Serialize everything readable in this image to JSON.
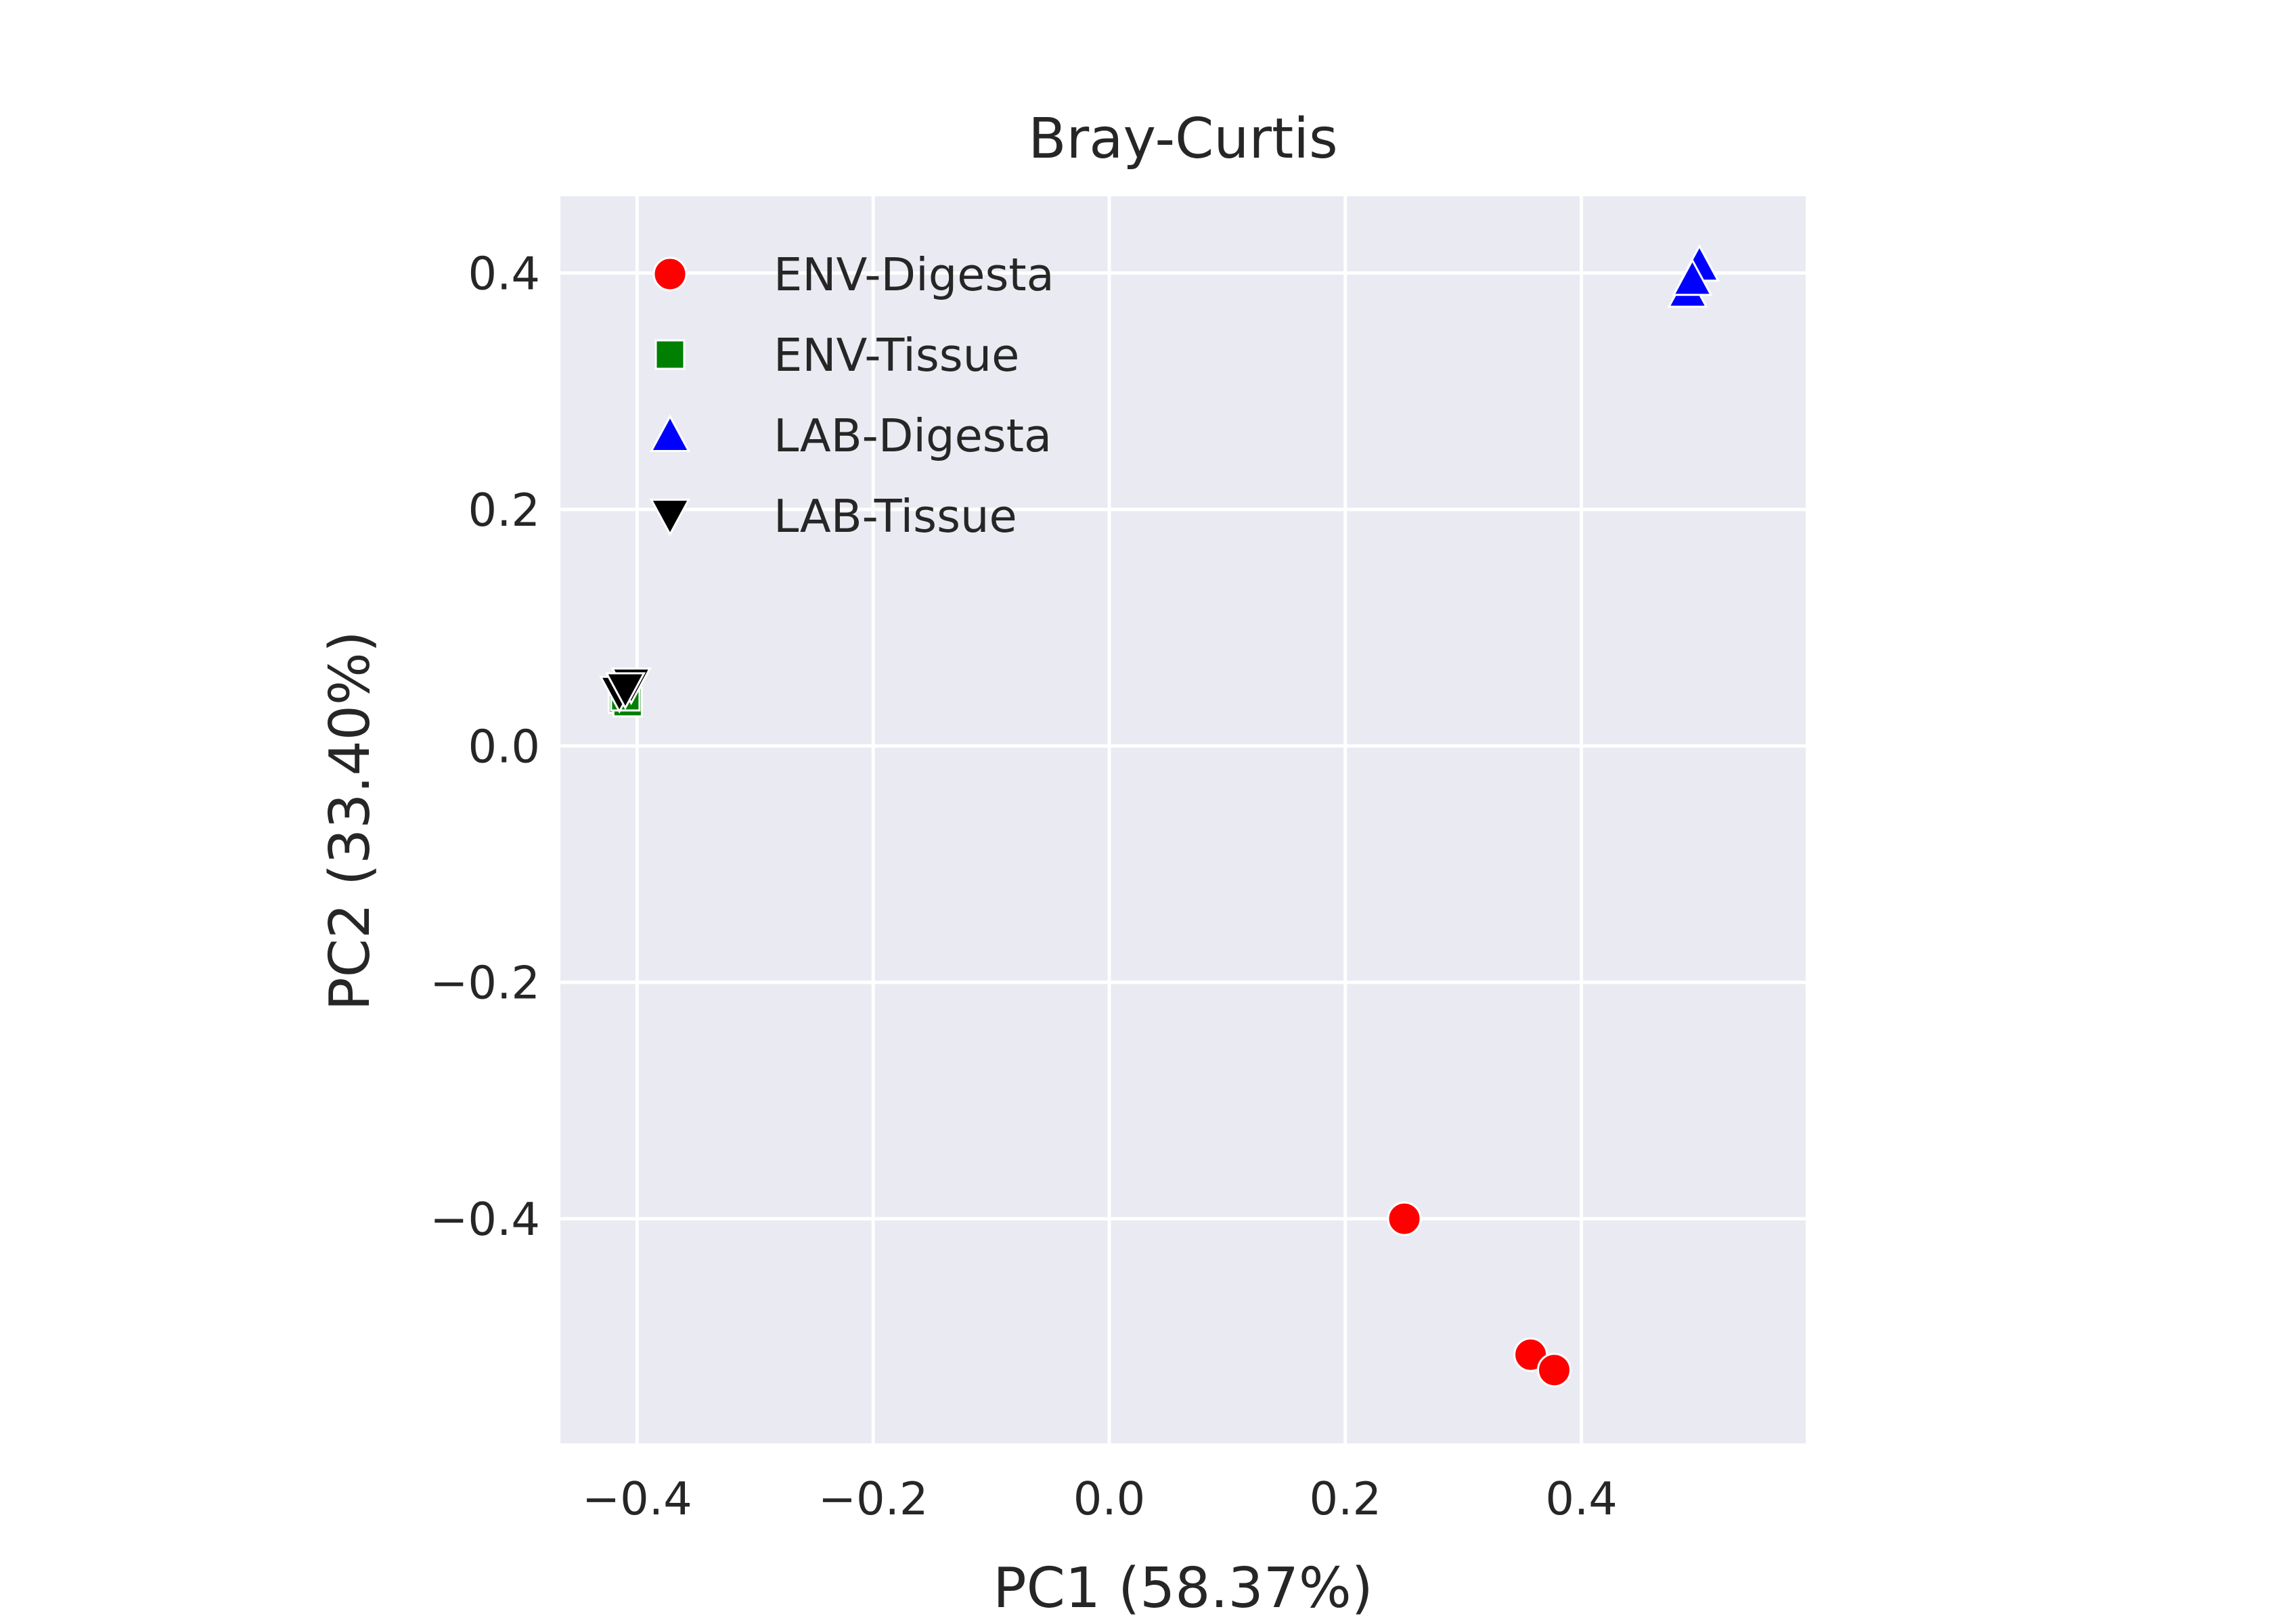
{
  "chart_data": {
    "type": "scatter",
    "title": "Bray-Curtis",
    "xlabel": "PC1 (58.37%)",
    "ylabel": "PC2 (33.40%)",
    "xlim": [
      -0.465,
      0.59
    ],
    "ylim": [
      -0.59,
      0.465
    ],
    "xticks": [
      -0.4,
      -0.2,
      0.0,
      0.2,
      0.4
    ],
    "xtick_labels": [
      "−0.4",
      "−0.2",
      "0.0",
      "0.2",
      "0.4"
    ],
    "yticks": [
      0.4,
      0.2,
      0.0,
      -0.2,
      -0.4
    ],
    "ytick_labels": [
      "0.4",
      "0.2",
      "0.0",
      "−0.2",
      "−0.4"
    ],
    "grid": true,
    "background": "#eaeaf2",
    "legend_position": "top-left",
    "series": [
      {
        "name": "ENV-Digesta",
        "marker": "circle",
        "color": "#ff0000",
        "points": [
          [
            0.25,
            -0.4
          ],
          [
            0.357,
            -0.515
          ],
          [
            0.377,
            -0.528
          ]
        ]
      },
      {
        "name": "ENV-Tissue",
        "marker": "square",
        "color": "#008000",
        "points": [
          [
            -0.412,
            0.04
          ],
          [
            -0.408,
            0.037
          ],
          [
            -0.41,
            0.042
          ]
        ]
      },
      {
        "name": "LAB-Digesta",
        "marker": "triangle-up",
        "color": "#0000ff",
        "points": [
          [
            0.49,
            0.385
          ],
          [
            0.5,
            0.407
          ],
          [
            0.494,
            0.395
          ]
        ]
      },
      {
        "name": "LAB-Tissue",
        "marker": "triangle-down",
        "color": "#000000",
        "points": [
          [
            -0.415,
            0.045
          ],
          [
            -0.405,
            0.052
          ],
          [
            -0.41,
            0.048
          ]
        ]
      }
    ]
  }
}
